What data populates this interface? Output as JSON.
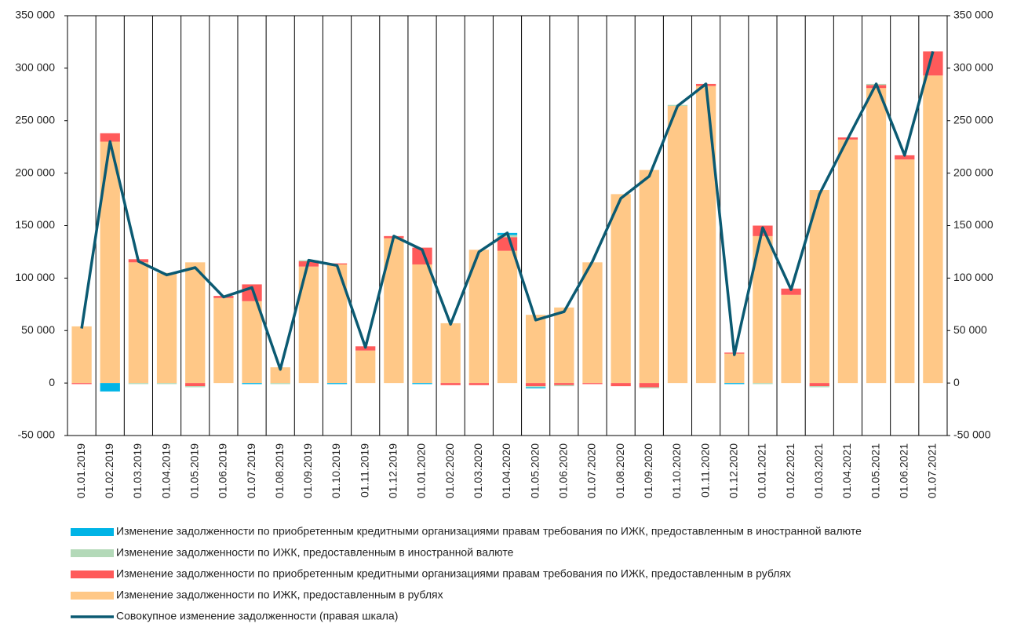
{
  "chart_data": {
    "type": "bar",
    "categories": [
      "01.01.2019",
      "01.02.2019",
      "01.03.2019",
      "01.04.2019",
      "01.05.2019",
      "01.06.2019",
      "01.07.2019",
      "01.08.2019",
      "01.09.2019",
      "01.10.2019",
      "01.11.2019",
      "01.12.2019",
      "01.01.2020",
      "01.02.2020",
      "01.03.2020",
      "01.04.2020",
      "01.05.2020",
      "01.06.2020",
      "01.07.2020",
      "01.08.2020",
      "01.09.2020",
      "01.10.2020",
      "01.11.2020",
      "01.12.2020",
      "01.01.2021",
      "01.02.2021",
      "01.03.2021",
      "01.04.2021",
      "01.05.2021",
      "01.06.2021",
      "01.07.2021"
    ],
    "series": [
      {
        "name": "Изменение задолженности по приобретенным кредитными организациями правам требования по ИЖК, предоставленным в иностранной валюте",
        "color": "#00b4e6",
        "values": [
          0,
          -8000,
          0,
          0,
          0,
          0,
          -1000,
          0,
          0,
          -1000,
          0,
          0,
          -1000,
          0,
          0,
          2000,
          -1000,
          0,
          0,
          0,
          0,
          0,
          0,
          -1000,
          0,
          0,
          0,
          0,
          0,
          0,
          0
        ]
      },
      {
        "name": "Изменение задолженности по ИЖК, предоставленным в иностранной валюте",
        "color": "#b3d9b8",
        "values": [
          0,
          0,
          -1000,
          -1000,
          -1000,
          0,
          0,
          -1000,
          1000,
          0,
          0,
          0,
          0,
          0,
          0,
          2000,
          -1000,
          -1000,
          0,
          0,
          -1000,
          1000,
          0,
          0,
          -1000,
          0,
          -1000,
          0,
          1000,
          0,
          0
        ]
      },
      {
        "name": "Изменение задолженности по приобретенным кредитными организациями правам требования по ИЖК, предоставленным в рублях",
        "color": "#ff5a5a",
        "values": [
          -1000,
          8000,
          3000,
          0,
          -3000,
          2000,
          16000,
          0,
          5000,
          1000,
          4000,
          2000,
          16000,
          -2000,
          -2000,
          13000,
          -3000,
          -2000,
          -1000,
          -3000,
          -4000,
          0,
          2000,
          1000,
          10000,
          6000,
          -3000,
          2000,
          3000,
          4000,
          23000
        ]
      },
      {
        "name": "Изменение задолженности по ИЖК, предоставленным в рублях",
        "color": "#ffc887",
        "values": [
          54000,
          230000,
          115000,
          105000,
          115000,
          81000,
          78000,
          15000,
          111000,
          113000,
          31000,
          138000,
          113000,
          57000,
          127000,
          126000,
          65000,
          72000,
          115000,
          180000,
          203000,
          264000,
          283000,
          28000,
          140000,
          84000,
          184000,
          232000,
          281000,
          213000,
          293000
        ]
      },
      {
        "name": "Совокупное изменение задолженности (правая шкала)",
        "color": "#0b5a72",
        "type": "line",
        "axis": "y2",
        "values": [
          52000,
          230000,
          116000,
          103000,
          110000,
          82000,
          91000,
          13000,
          117000,
          112000,
          34000,
          140000,
          127000,
          56000,
          125000,
          143000,
          60000,
          68000,
          116000,
          176000,
          197000,
          264000,
          285000,
          27000,
          148000,
          89000,
          180000,
          233000,
          285000,
          217000,
          316000
        ]
      }
    ],
    "ylim": [
      -50000,
      350000
    ],
    "yticks": [
      {
        "value": -50000,
        "label": "-50 000"
      },
      0,
      {
        "value": 50000,
        "label": "50 000"
      },
      {
        "value": 100000,
        "label": "100 000"
      },
      {
        "value": 150000,
        "label": "150 000"
      },
      {
        "value": 200000,
        "label": "200 000"
      },
      {
        "value": 250000,
        "label": "250 000"
      },
      {
        "value": 300000,
        "label": "300 000"
      },
      {
        "value": 350000,
        "label": "350 000"
      }
    ],
    "y2lim": [
      -50000,
      350000
    ],
    "y2ticks": [
      {
        "value": -50000,
        "label": "-50 000"
      },
      0,
      {
        "value": 50000,
        "label": "50 000"
      },
      {
        "value": 100000,
        "label": "100 000"
      },
      {
        "value": 150000,
        "label": "150 000"
      },
      {
        "value": 200000,
        "label": "200 000"
      },
      {
        "value": 250000,
        "label": "250 000"
      },
      {
        "value": 300000,
        "label": "300 000"
      },
      {
        "value": 350000,
        "label": "350 000"
      }
    ],
    "stacked": true
  }
}
